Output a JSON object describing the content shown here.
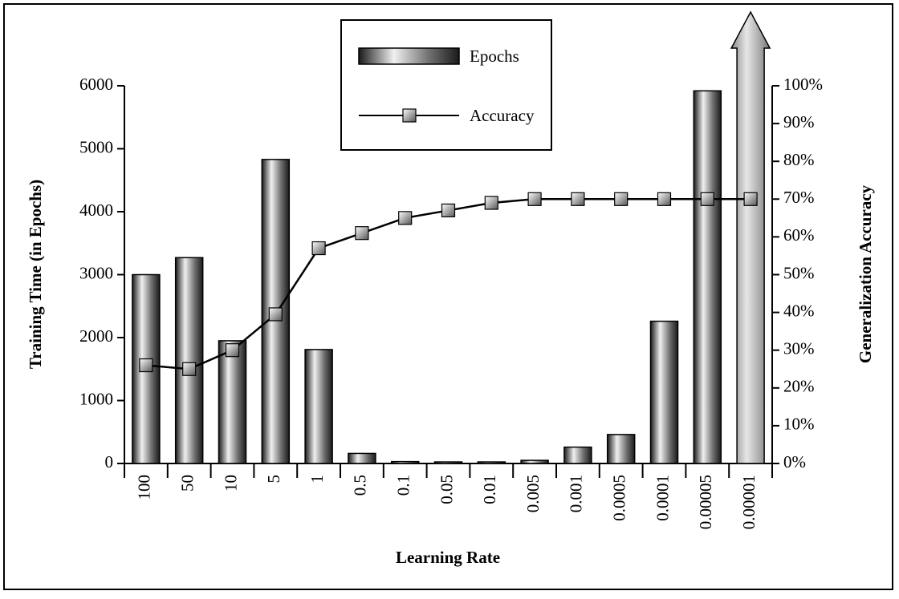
{
  "chart_data": {
    "type": "combo",
    "x_label": "Learning Rate",
    "y_label": "Training Time (in Epochs)",
    "y2_label": "Generalization Accuracy",
    "categories": [
      "100",
      "50",
      "10",
      "5",
      "1",
      "0.5",
      "0.1",
      "0.05",
      "0.01",
      "0.005",
      "0.001",
      "0.0005",
      "0.0001",
      "0.00005",
      "0.00001"
    ],
    "series": [
      {
        "name": "Epochs",
        "type": "bar",
        "color": "#808080",
        "values": [
          3000,
          3270,
          1950,
          4830,
          1810,
          160,
          30,
          25,
          25,
          50,
          260,
          460,
          2260,
          5920,
          null
        ]
      },
      {
        "name": "Accuracy",
        "type": "line",
        "axis": "y2",
        "color": "#000000",
        "values": [
          26,
          25,
          30,
          39.5,
          57,
          61,
          65,
          67,
          69,
          70,
          70,
          70,
          70,
          70,
          70
        ]
      }
    ],
    "ylim": [
      0,
      6000
    ],
    "yticks": [
      0,
      1000,
      2000,
      3000,
      4000,
      5000,
      6000
    ],
    "y2lim": [
      0,
      100
    ],
    "y2ticks": [
      {
        "value": 0,
        "label": "0%"
      },
      {
        "value": 10,
        "label": "10%"
      },
      {
        "value": 20,
        "label": "20%"
      },
      {
        "value": 30,
        "label": "30%"
      },
      {
        "value": 40,
        "label": "40%"
      },
      {
        "value": 50,
        "label": "50%"
      },
      {
        "value": 60,
        "label": "60%"
      },
      {
        "value": 70,
        "label": "70%"
      },
      {
        "value": 80,
        "label": "80%"
      },
      {
        "value": 90,
        "label": "90%"
      },
      {
        "value": 100,
        "label": "100%"
      }
    ],
    "legend": "top"
  }
}
